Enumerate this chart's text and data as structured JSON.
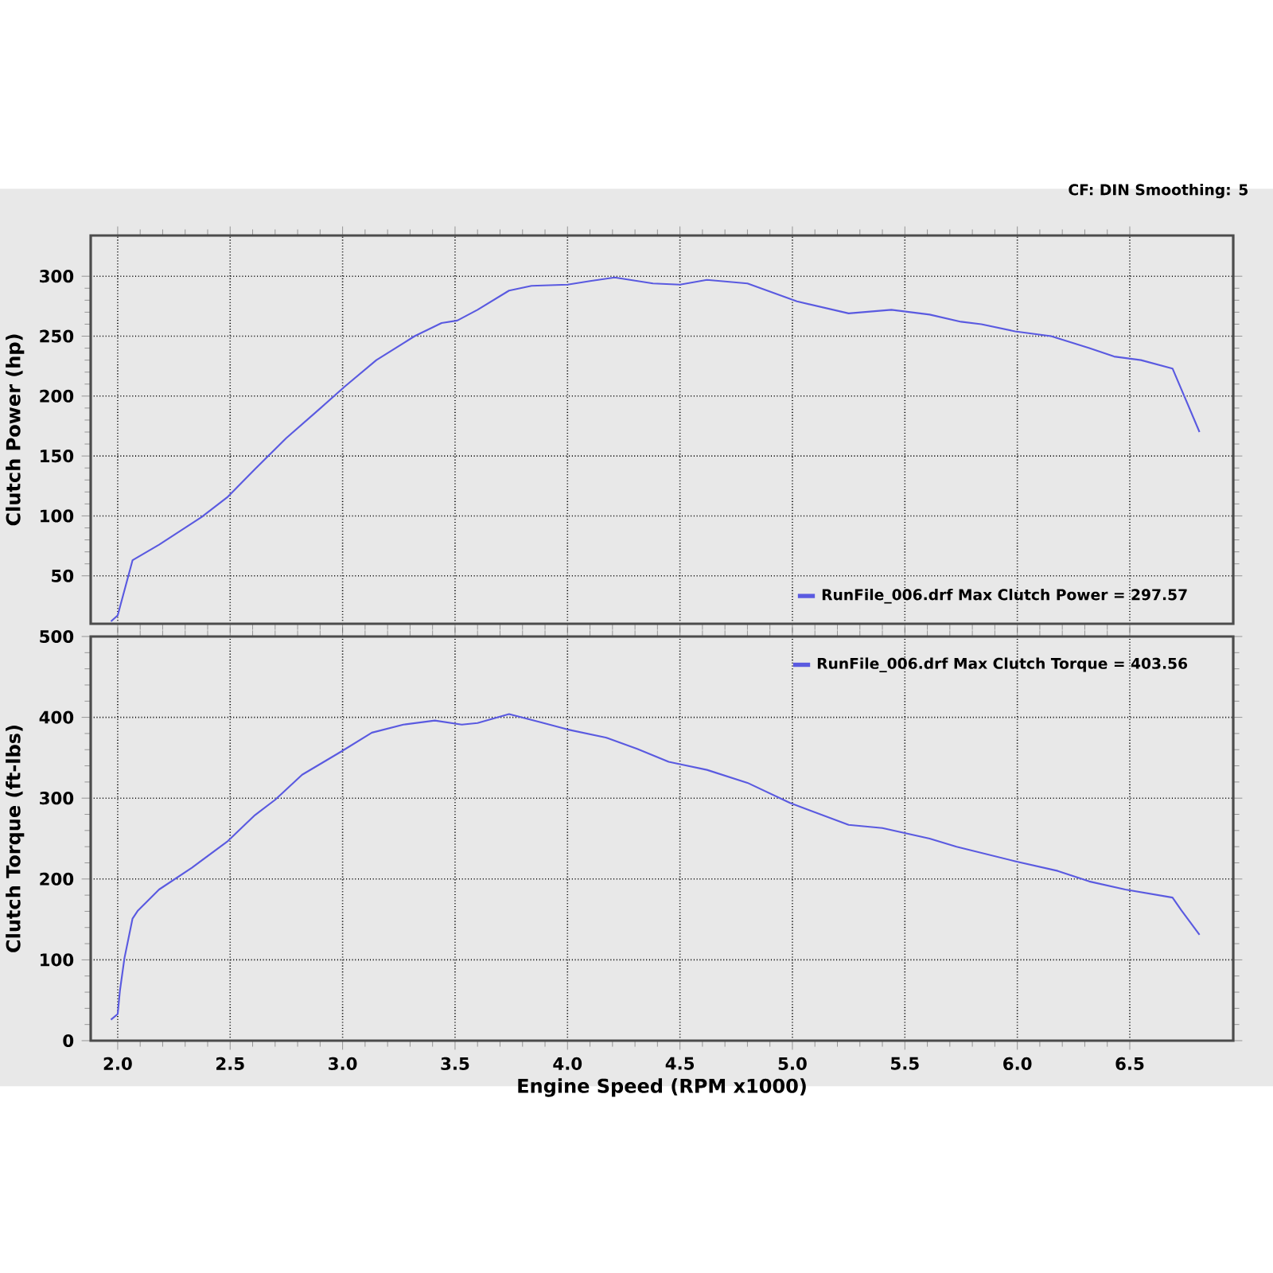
{
  "chart_data": [
    {
      "type": "line",
      "ylabel": "Clutch Power (hp)",
      "annotations": [
        "CF: DIN  Smoothing: 5"
      ],
      "x": [
        1.97,
        2.0,
        2.066,
        2.184,
        2.373,
        2.49,
        2.61,
        2.75,
        2.89,
        3.01,
        3.15,
        3.32,
        3.44,
        3.51,
        3.6,
        3.74,
        3.84,
        4.0,
        4.1,
        4.21,
        4.38,
        4.5,
        4.62,
        4.8,
        5.02,
        5.25,
        5.44,
        5.61,
        5.75,
        5.84,
        5.99,
        6.15,
        6.32,
        6.43,
        6.55,
        6.69,
        6.74,
        6.81
      ],
      "series": [
        {
          "name": "RunFile_006.drf Max Clutch Power = 297.57",
          "color": "#5a5ae0",
          "values": [
            12,
            17,
            63,
            76,
            99,
            116,
            139,
            165,
            188,
            208,
            230,
            250,
            261,
            263,
            272,
            288,
            292,
            293,
            296,
            299,
            294,
            293,
            297,
            294,
            279,
            269,
            272,
            268,
            262,
            260,
            254,
            250,
            240,
            233,
            230,
            223,
            201,
            170
          ]
        }
      ],
      "xlim": [
        1.88,
        6.96
      ],
      "xticks": [
        {
          "value": 2,
          "label": null
        },
        {
          "value": 2.5,
          "label": null
        },
        {
          "value": 3,
          "label": null
        },
        {
          "value": 3.5,
          "label": null
        },
        {
          "value": 4,
          "label": null
        },
        {
          "value": 4.5,
          "label": null
        },
        {
          "value": 5,
          "label": null
        },
        {
          "value": 5.5,
          "label": null
        },
        {
          "value": 6,
          "label": null
        },
        {
          "value": 6.5,
          "label": null
        }
      ],
      "ylim": [
        10,
        334
      ],
      "yticks": [
        50,
        100,
        150,
        200,
        250,
        300
      ],
      "tick_labels": "y",
      "grid": true,
      "legend": "bottom right"
    },
    {
      "type": "line",
      "ylabel": "Clutch Torque (ft-lbs)",
      "xlabel": "Engine Speed (RPM x1000)",
      "x": [
        1.97,
        2.0,
        2.01,
        2.03,
        2.066,
        2.09,
        2.184,
        2.33,
        2.49,
        2.61,
        2.7,
        2.82,
        2.99,
        3.13,
        3.27,
        3.41,
        3.53,
        3.6,
        3.74,
        3.88,
        4.0,
        4.17,
        4.31,
        4.45,
        4.5,
        4.62,
        4.8,
        4.99,
        5.25,
        5.4,
        5.61,
        5.73,
        5.99,
        6.18,
        6.32,
        6.48,
        6.69,
        6.73,
        6.81
      ],
      "series": [
        {
          "name": "RunFile_006.drf Max Clutch Torque = 403.56",
          "color": "#5a5ae0",
          "values": [
            26,
            33,
            62,
            102,
            151,
            161,
            187,
            214,
            247,
            279,
            298,
            329,
            357,
            381,
            391,
            396,
            391,
            393,
            404,
            394,
            385,
            375,
            361,
            345,
            342,
            335,
            319,
            294,
            267,
            263,
            250,
            240,
            222,
            210,
            197,
            187,
            177,
            161,
            131
          ]
        }
      ],
      "xlim": [
        1.88,
        6.96
      ],
      "xticks": [
        {
          "value": 2,
          "label": "2.0"
        },
        {
          "value": 2.5,
          "label": "2.5"
        },
        {
          "value": 3,
          "label": "3.0"
        },
        {
          "value": 3.5,
          "label": "3.5"
        },
        {
          "value": 4,
          "label": "4.0"
        },
        {
          "value": 4.5,
          "label": "4.5"
        },
        {
          "value": 5,
          "label": "5.0"
        },
        {
          "value": 5.5,
          "label": "5.5"
        },
        {
          "value": 6,
          "label": "6.0"
        },
        {
          "value": 6.5,
          "label": "6.5"
        }
      ],
      "ylim": [
        0,
        500
      ],
      "yticks": [
        0,
        100,
        200,
        300,
        400,
        500
      ],
      "grid": true,
      "legend": "top right"
    }
  ]
}
